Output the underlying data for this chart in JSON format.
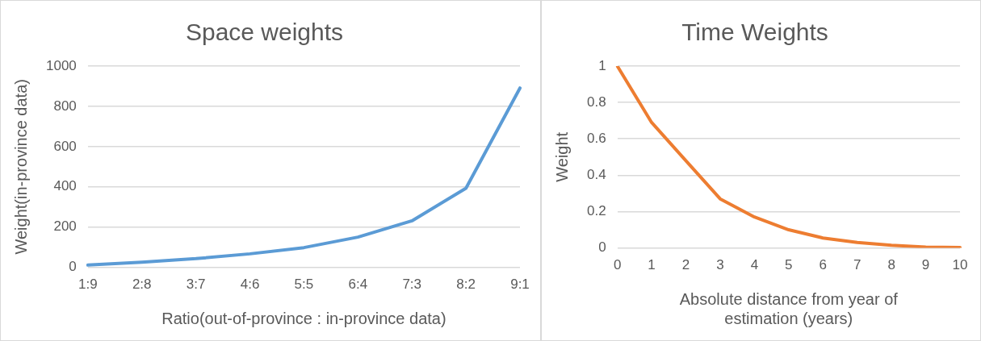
{
  "chart_data": [
    {
      "type": "line",
      "title": "Space weights",
      "xlabel": "Ratio(out-of-province : in-province data)",
      "ylabel": "Weight(in-province data)",
      "categories": [
        "1:9",
        "2:8",
        "3:7",
        "4:6",
        "5:5",
        "6:4",
        "7:3",
        "8:2",
        "9:1"
      ],
      "series": [
        {
          "color": "#5b9bd5",
          "values": [
            11,
            25,
            43,
            67,
            98,
            150,
            231,
            393,
            891
          ]
        }
      ],
      "ylim": [
        0,
        1000
      ],
      "yticks": [
        0,
        200,
        400,
        600,
        800,
        1000
      ],
      "grid": "y"
    },
    {
      "type": "line",
      "title": "Time Weights",
      "xlabel": "Absolute distance from year of estimation (years)",
      "ylabel": "Weight",
      "categories": [
        "0",
        "1",
        "2",
        "3",
        "4",
        "5",
        "6",
        "7",
        "8",
        "9",
        "10"
      ],
      "series": [
        {
          "color": "#ed7d31",
          "values": [
            1,
            0.69,
            0.48,
            0.27,
            0.17,
            0.1,
            0.055,
            0.03,
            0.015,
            0.005,
            0.003
          ]
        }
      ],
      "ylim": [
        0,
        1
      ],
      "yticks": [
        0,
        0.2,
        0.4,
        0.6,
        0.8,
        1
      ],
      "grid": "y"
    }
  ]
}
